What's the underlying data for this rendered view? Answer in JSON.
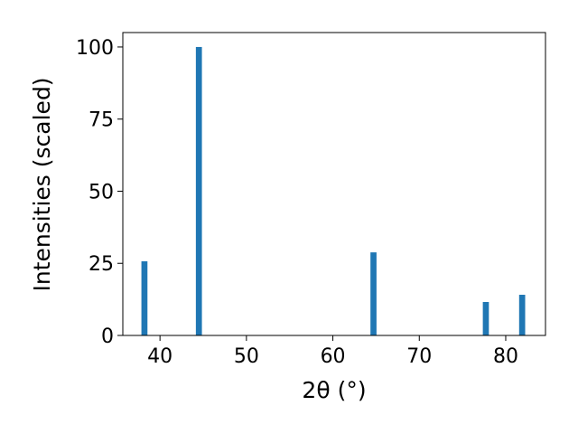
{
  "chart_data": {
    "type": "bar",
    "x": [
      38.2,
      44.5,
      64.7,
      77.7,
      81.9
    ],
    "values": [
      25.7,
      100,
      28.8,
      11.6,
      14.1
    ],
    "color": "#1f77b4",
    "bar_width": 0.7,
    "xlabel": "2θ (°)",
    "ylabel": "Intensities (scaled)",
    "xlim": [
      35.7,
      84.6
    ],
    "xticks": [
      40,
      50,
      60,
      70,
      80
    ],
    "ylim": [
      0,
      105
    ],
    "yticks": [
      0,
      25,
      50,
      75,
      100
    ]
  }
}
